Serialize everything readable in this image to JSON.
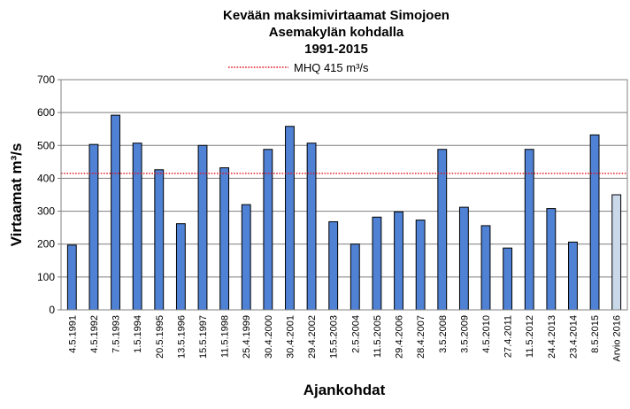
{
  "chart_data": {
    "type": "bar",
    "title_lines": [
      "Kevään maksimivirtaamat Simojoen",
      "Asemakylän kohdalla",
      "1991-2015"
    ],
    "xlabel": "Ajankohdat",
    "ylabel": "Virtaamat m³/s",
    "ylim": [
      0,
      700
    ],
    "yticks": [
      0,
      100,
      200,
      300,
      400,
      500,
      600,
      700
    ],
    "grid": true,
    "legend_position": "top",
    "categories": [
      "4.5.1991",
      "4.5.1992",
      "7.5.1993",
      "1.5.1994",
      "20.5.1995",
      "13.5.1996",
      "15.5.1997",
      "11.5.1998",
      "25.4.1999",
      "30.4.2000",
      "30.4.2001",
      "29.4.2002",
      "15.5.2003",
      "2.5.2004",
      "11.5.2005",
      "29.4.2006",
      "28.4.2007",
      "3.5.2008",
      "3.5.2009",
      "4.5.2010",
      "27.4.2011",
      "11.5.2012",
      "24.4.2013",
      "23.4.2014",
      "8.5.2015",
      "Arvio 2016"
    ],
    "values": [
      197,
      503,
      592,
      507,
      426,
      262,
      500,
      432,
      320,
      488,
      558,
      507,
      268,
      200,
      282,
      298,
      273,
      488,
      312,
      256,
      188,
      488,
      308,
      206,
      532,
      350
    ],
    "bar_colors": {
      "measured": "#4f81d4",
      "estimate": "#c9d9ea",
      "outline": "#000000"
    },
    "estimate_index": 25,
    "reference_line": {
      "label": "MHQ 415 m³/s",
      "value": 415,
      "color": "#e0141e"
    }
  }
}
